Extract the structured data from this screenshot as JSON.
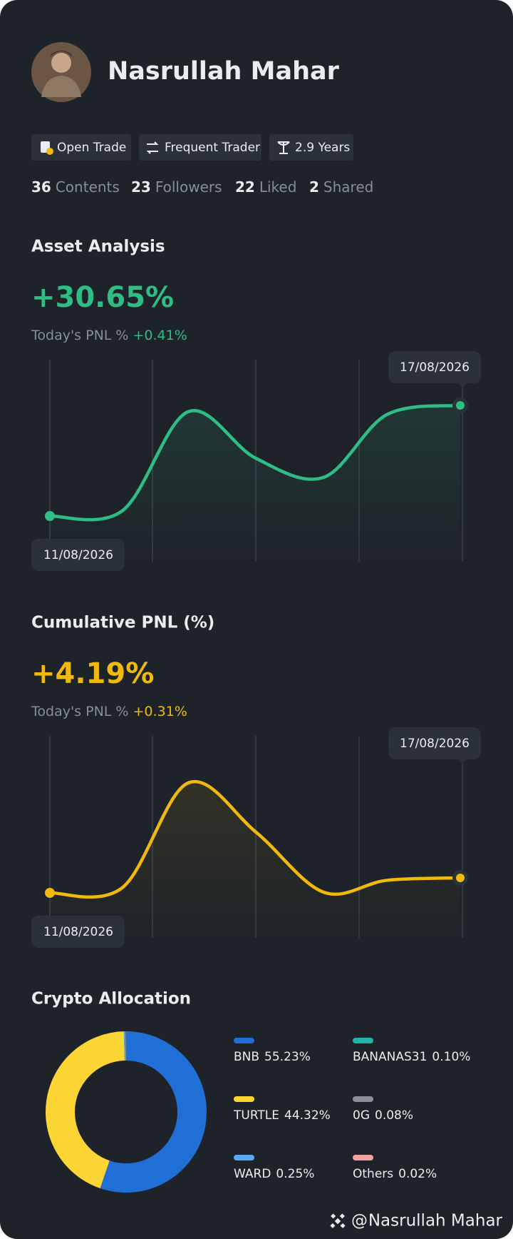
{
  "profile": {
    "name": "Nasrullah Mahar",
    "badges": [
      "Open Trade",
      "Frequent Trader",
      "2.9 Years"
    ],
    "stats": [
      {
        "value": 36,
        "label": "Contents"
      },
      {
        "value": 23,
        "label": "Followers"
      },
      {
        "value": 22,
        "label": "Liked"
      },
      {
        "value": 2,
        "label": "Shared"
      }
    ]
  },
  "chart_data": [
    {
      "type": "line",
      "title": "Asset Analysis",
      "headline": "+30.65%",
      "subtitle_label": "Today's PNL %",
      "subtitle_value": "+0.41%",
      "categories": [
        "11/08/2026",
        null,
        null,
        null,
        null,
        null,
        "17/08/2026"
      ],
      "values": [
        0,
        1.5,
        28.9,
        16,
        10.7,
        28.1,
        30.65
      ],
      "color": "#2ebd85"
    },
    {
      "type": "line",
      "title": "Cumulative PNL (%)",
      "headline": "+4.19%",
      "subtitle_label": "Today's PNL %",
      "subtitle_value": "+0.31%",
      "categories": [
        "11/08/2026",
        null,
        null,
        null,
        null,
        null,
        "17/08/2026"
      ],
      "values": [
        0,
        1.5,
        30.7,
        17,
        0.2,
        3.5,
        4.19
      ],
      "color": "#f0b90b"
    },
    {
      "type": "pie",
      "title": "Crypto Allocation",
      "categories": [
        "BNB",
        "TURTLE",
        "WARD",
        "BANANAS31",
        "0G",
        "Others"
      ],
      "values": [
        55.23,
        44.32,
        0.25,
        0.1,
        0.08,
        0.02
      ],
      "value_labels": [
        "55.23%",
        "44.32%",
        "0.25%",
        "0.10%",
        "0.08%",
        "0.02%"
      ],
      "colors": [
        "#1f6fd6",
        "#fcd535",
        "#5ba8f5",
        "#1fb5a8",
        "#8a8f98",
        "#f5a0a0"
      ]
    }
  ]
}
